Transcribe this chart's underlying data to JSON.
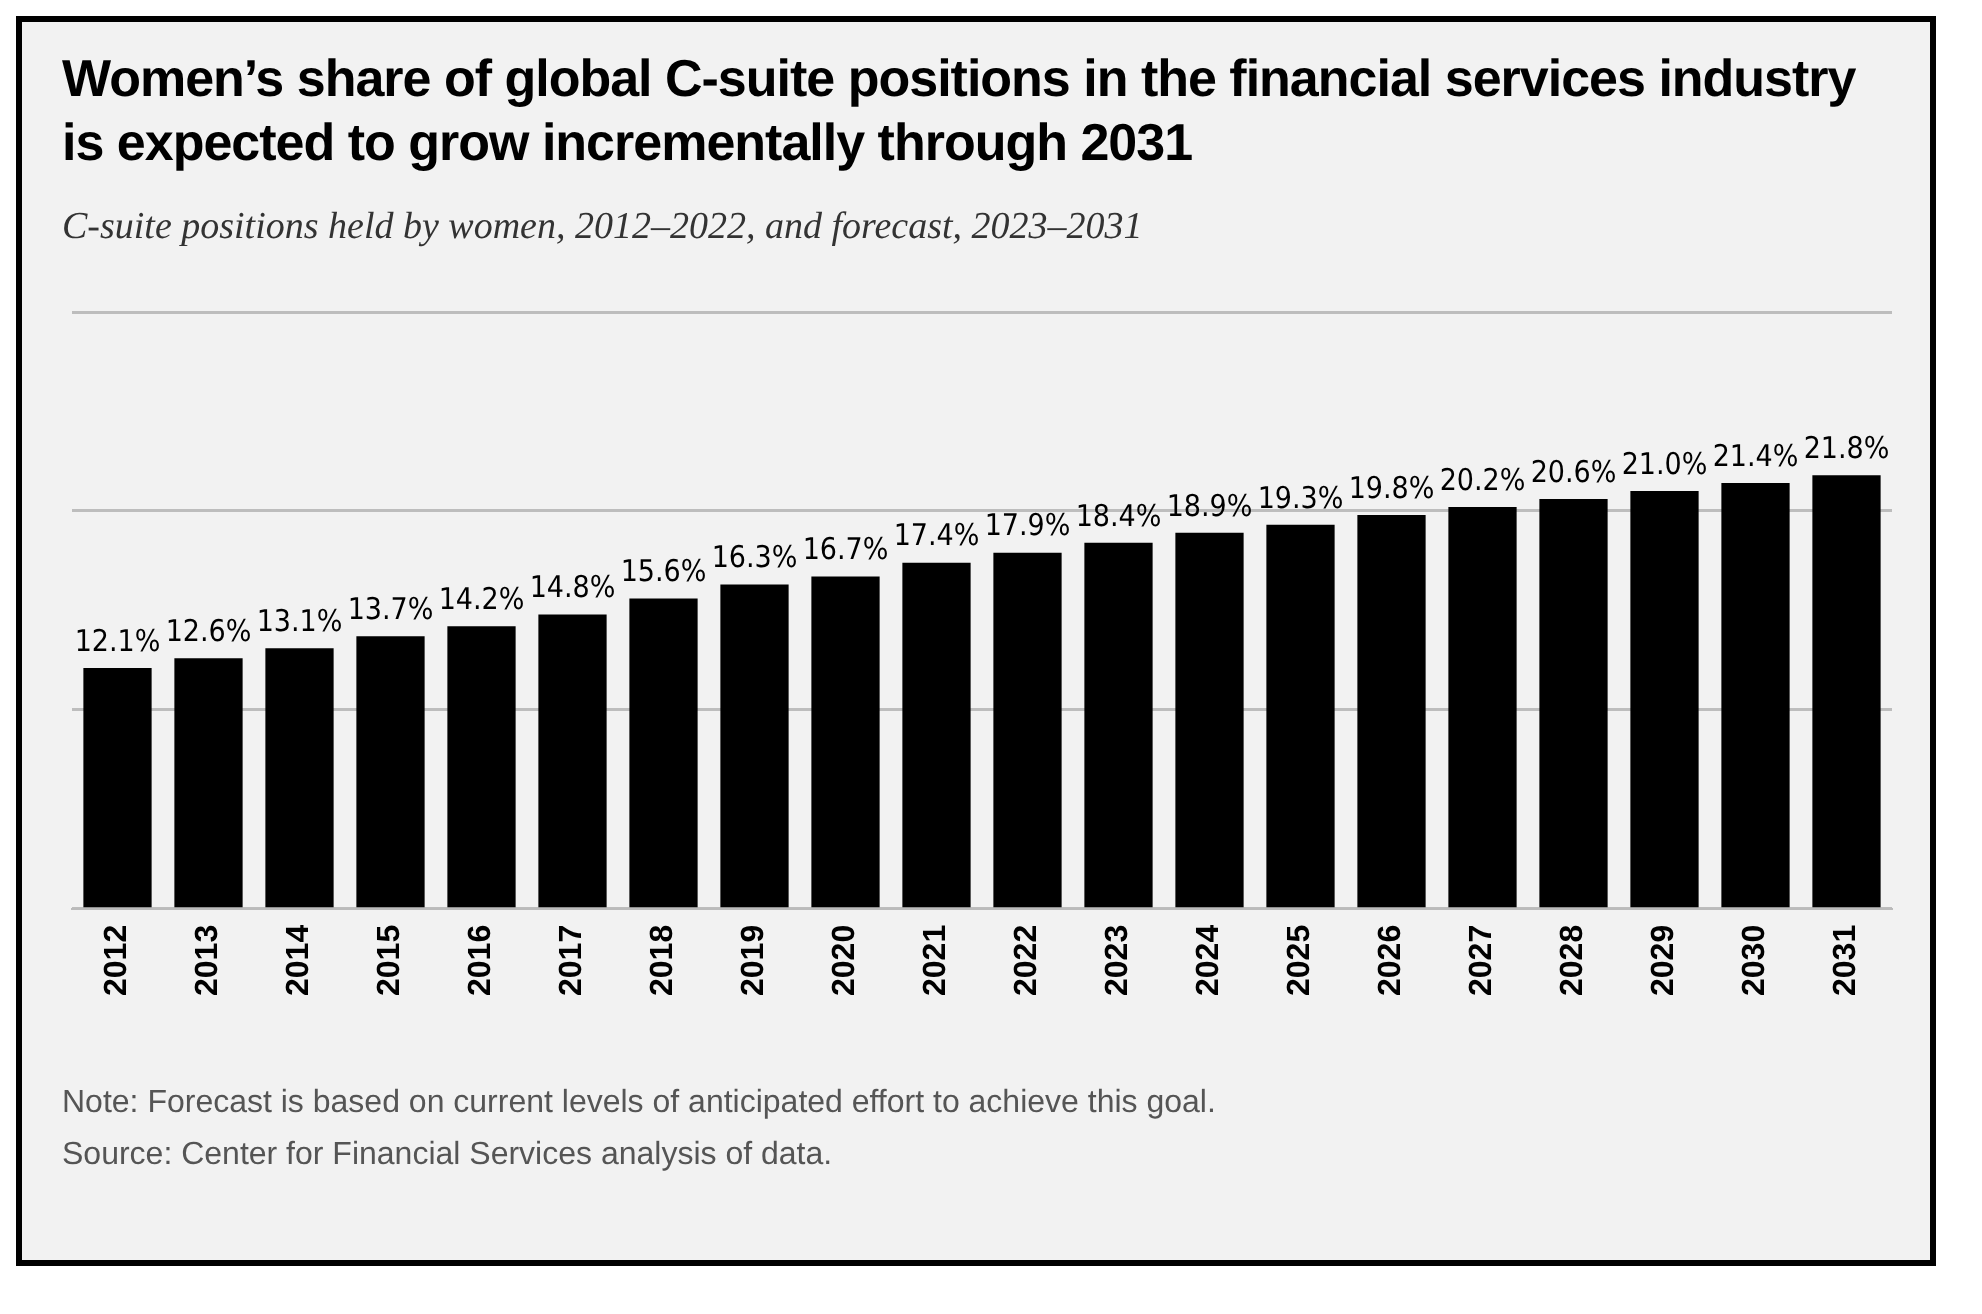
{
  "chart_data": {
    "type": "bar",
    "title": "Women’s share of global C-suite positions in the financial services industry is expected to grow incrementally through 2031",
    "subtitle": "C-suite positions held by women, 2012–2022, and forecast, 2023–2031",
    "categories": [
      "2012",
      "2013",
      "2014",
      "2015",
      "2016",
      "2017",
      "2018",
      "2019",
      "2020",
      "2021",
      "2022",
      "2023",
      "2024",
      "2025",
      "2026",
      "2027",
      "2028",
      "2029",
      "2030",
      "2031"
    ],
    "values": [
      12.1,
      12.6,
      13.1,
      13.7,
      14.2,
      14.8,
      15.6,
      16.3,
      16.7,
      17.4,
      17.9,
      18.4,
      18.9,
      19.3,
      19.8,
      20.2,
      20.6,
      21.0,
      21.4,
      21.8
    ],
    "value_labels": [
      "12.1%",
      "12.6%",
      "13.1%",
      "13.7%",
      "14.2%",
      "14.8%",
      "15.6%",
      "16.3%",
      "16.7%",
      "17.4%",
      "17.9%",
      "18.4%",
      "18.9%",
      "19.3%",
      "19.8%",
      "20.2%",
      "20.6%",
      "21.0%",
      "21.4%",
      "21.8%"
    ],
    "color": "#000000",
    "ylim": [
      0,
      30
    ],
    "yticks": [
      {
        "value": 0,
        "label": null
      },
      {
        "value": 10,
        "label": null
      },
      {
        "value": 20,
        "label": null
      },
      {
        "value": 30,
        "label": null
      }
    ],
    "grid": "y",
    "tick_labels": "x",
    "annotations": [
      "Note: Forecast is based on current levels of anticipated effort to achieve this goal.",
      "Source: Center for Financial Services analysis of data."
    ]
  }
}
